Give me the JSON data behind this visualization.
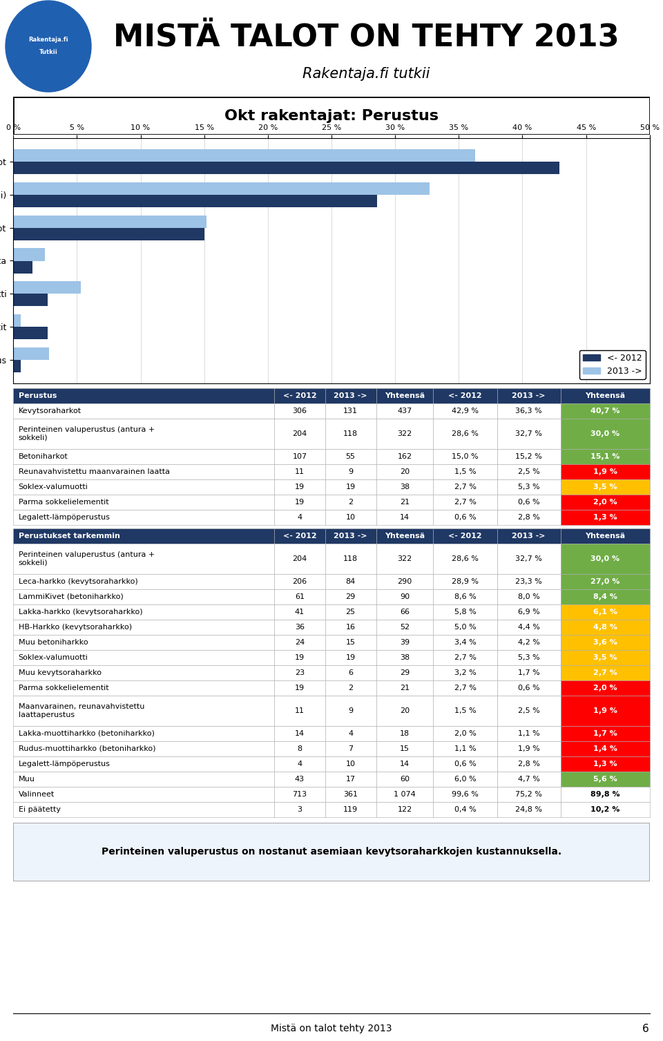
{
  "title": "MISTÄ TALOT ON TEHTY 2013",
  "subtitle": "Rakentaja.fi tutkii",
  "section_title": "Okt rakentajat: Perustus",
  "footer": "Mistä on talot tehty 2013",
  "page_num": "6",
  "note": "Perinteinen valuperustus on nostanut asemiaan kevytsoraharkkojen kustannuksella.",
  "bar_categories": [
    "Kevytsoraharkot",
    "Perinteinen valuperustus (antura + sokkeli)",
    "Betoniharkot",
    "Reunavahvistettu maanvarainen laatta",
    "Soklex-valumuotti",
    "Parma sokkelielementit",
    "Legalett-lämpöperustus"
  ],
  "bar_values_2012": [
    42.9,
    28.6,
    15.0,
    1.5,
    2.7,
    2.7,
    0.6
  ],
  "bar_values_2013": [
    36.3,
    32.7,
    15.2,
    2.5,
    5.3,
    0.6,
    2.8
  ],
  "color_2012": "#1F3864",
  "color_2013": "#9DC3E6",
  "axis_ticks": [
    0,
    5,
    10,
    15,
    20,
    25,
    30,
    35,
    40,
    45,
    50
  ],
  "table1_headers": [
    "Perustus",
    "<- 2012",
    "2013 ->",
    "Yhteensä",
    "<- 2012",
    "2013 ->",
    "Yhteensä"
  ],
  "table1_header_bg": "#1F3864",
  "table1_header_fg": "#FFFFFF",
  "table1_rows": [
    [
      "Kevytsoraharkot",
      "306",
      "131",
      "437",
      "42,9 %",
      "36,3 %",
      "40,7 %"
    ],
    [
      "Perinteinen valuperustus (antura +\nsokkeli)",
      "204",
      "118",
      "322",
      "28,6 %",
      "32,7 %",
      "30,0 %"
    ],
    [
      "Betoniharkot",
      "107",
      "55",
      "162",
      "15,0 %",
      "15,2 %",
      "15,1 %"
    ],
    [
      "Reunavahvistettu maanvarainen laatta",
      "11",
      "9",
      "20",
      "1,5 %",
      "2,5 %",
      "1,9 %"
    ],
    [
      "Soklex-valumuotti",
      "19",
      "19",
      "38",
      "2,7 %",
      "5,3 %",
      "3,5 %"
    ],
    [
      "Parma sokkelielementit",
      "19",
      "2",
      "21",
      "2,7 %",
      "0,6 %",
      "2,0 %"
    ],
    [
      "Legalett-lämpöperustus",
      "4",
      "10",
      "14",
      "0,6 %",
      "2,8 %",
      "1,3 %"
    ]
  ],
  "table1_last_col_colors": [
    "#70AD47",
    "#70AD47",
    "#70AD47",
    "#FF0000",
    "#FFC000",
    "#FF0000",
    "#FF0000"
  ],
  "table2_headers": [
    "Perustukset tarkemmin",
    "<- 2012",
    "2013 ->",
    "Yhteensä",
    "<- 2012",
    "2013 ->",
    "Yhteensä"
  ],
  "table2_rows": [
    [
      "Perinteinen valuperustus (antura +\nsokkeli)",
      "204",
      "118",
      "322",
      "28,6 %",
      "32,7 %",
      "30,0 %"
    ],
    [
      "Leca-harkko (kevytsoraharkko)",
      "206",
      "84",
      "290",
      "28,9 %",
      "23,3 %",
      "27,0 %"
    ],
    [
      "LammiKivet (betoniharkko)",
      "61",
      "29",
      "90",
      "8,6 %",
      "8,0 %",
      "8,4 %"
    ],
    [
      "Lakka-harkko (kevytsoraharkko)",
      "41",
      "25",
      "66",
      "5,8 %",
      "6,9 %",
      "6,1 %"
    ],
    [
      "HB-Harkko (kevytsoraharkko)",
      "36",
      "16",
      "52",
      "5,0 %",
      "4,4 %",
      "4,8 %"
    ],
    [
      "Muu betoniharkko",
      "24",
      "15",
      "39",
      "3,4 %",
      "4,2 %",
      "3,6 %"
    ],
    [
      "Soklex-valumuotti",
      "19",
      "19",
      "38",
      "2,7 %",
      "5,3 %",
      "3,5 %"
    ],
    [
      "Muu kevytsoraharkko",
      "23",
      "6",
      "29",
      "3,2 %",
      "1,7 %",
      "2,7 %"
    ],
    [
      "Parma sokkelielementit",
      "19",
      "2",
      "21",
      "2,7 %",
      "0,6 %",
      "2,0 %"
    ],
    [
      "Maanvarainen, reunavahvistettu\nlaattaperustus",
      "11",
      "9",
      "20",
      "1,5 %",
      "2,5 %",
      "1,9 %"
    ],
    [
      "Lakka-muottiharkko (betoniharkko)",
      "14",
      "4",
      "18",
      "2,0 %",
      "1,1 %",
      "1,7 %"
    ],
    [
      "Rudus-muottiharkko (betoniharkko)",
      "8",
      "7",
      "15",
      "1,1 %",
      "1,9 %",
      "1,4 %"
    ],
    [
      "Legalett-lämpöperustus",
      "4",
      "10",
      "14",
      "0,6 %",
      "2,8 %",
      "1,3 %"
    ],
    [
      "Muu",
      "43",
      "17",
      "60",
      "6,0 %",
      "4,7 %",
      "5,6 %"
    ],
    [
      "Valinneet",
      "713",
      "361",
      "1 074",
      "99,6 %",
      "75,2 %",
      "89,8 %"
    ],
    [
      "Ei päätetty",
      "3",
      "119",
      "122",
      "0,4 %",
      "24,8 %",
      "10,2 %"
    ]
  ],
  "table2_last_col_colors": [
    "#70AD47",
    "#70AD47",
    "#70AD47",
    "#FFC000",
    "#FFC000",
    "#FFC000",
    "#FFC000",
    "#FFC000",
    "#FF0000",
    "#FF0000",
    "#FF0000",
    "#FF0000",
    "#FF0000",
    "#70AD47",
    "#FFFFFF",
    "#FFFFFF"
  ]
}
